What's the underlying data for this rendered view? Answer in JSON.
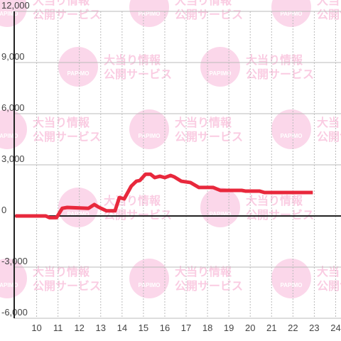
{
  "chart_data": {
    "type": "line",
    "watermark": {
      "brand": "PAPIMO",
      "line1": "大当り情報",
      "line2": "公開サービス"
    },
    "x": [
      9,
      10.43,
      10.6,
      10.93,
      11.2,
      11.43,
      12.43,
      12.7,
      12.93,
      13.27,
      13.67,
      13.87,
      14.1,
      14.43,
      14.67,
      14.83,
      15.1,
      15.33,
      15.53,
      15.77,
      16,
      16.27,
      16.43,
      16.77,
      17.2,
      17.6,
      18.27,
      18.6,
      19.6,
      19.77,
      20.43,
      20.67,
      22.93
    ],
    "series": [
      {
        "color": "#e8283c",
        "values": [
          0,
          0,
          -100,
          -100,
          450,
          500,
          450,
          670,
          500,
          300,
          300,
          1080,
          1000,
          1750,
          2040,
          2080,
          2450,
          2450,
          2250,
          2330,
          2250,
          2375,
          2300,
          2040,
          1960,
          1670,
          1670,
          1500,
          1500,
          1460,
          1460,
          1375,
          1375
        ]
      }
    ],
    "xlim": [
      8.95,
      24.25
    ],
    "xticks": [
      10,
      11,
      12,
      13,
      14,
      15,
      16,
      17,
      18,
      19,
      20,
      21,
      22,
      23,
      24
    ],
    "ylim": [
      -6000,
      12000
    ],
    "yticks": [
      {
        "value": -6000,
        "label": "-6,000"
      },
      {
        "value": -3000,
        "label": "-3,000"
      },
      0,
      {
        "value": 3000,
        "label": "3,000"
      },
      {
        "value": 6000,
        "label": "6,000"
      },
      {
        "value": 9000,
        "label": "9,000"
      },
      {
        "value": 12000,
        "label": "12,000"
      }
    ],
    "grid": true
  }
}
